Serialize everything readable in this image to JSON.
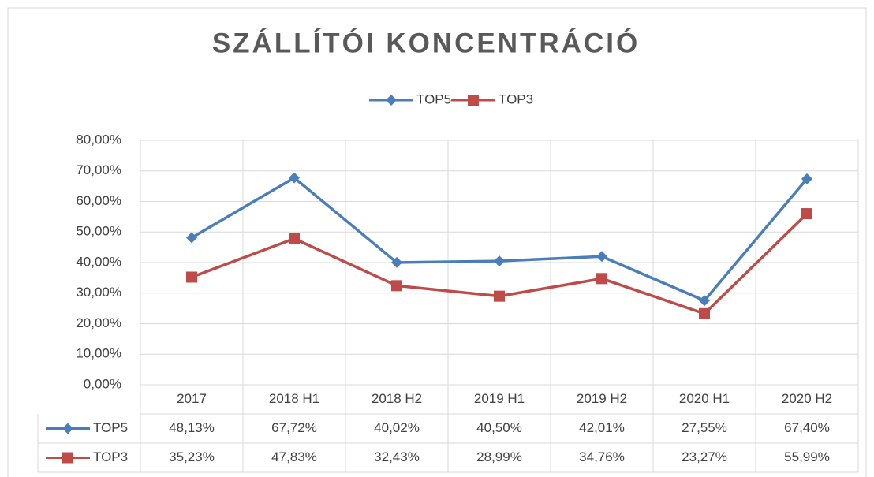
{
  "chart_data": {
    "type": "line",
    "title": "SZÁLLÍTÓI KONCENTRÁCIÓ",
    "categories": [
      "2017",
      "2018 H1",
      "2018 H2",
      "2019 H1",
      "2019 H2",
      "2020 H1",
      "2020 H2"
    ],
    "series": [
      {
        "name": "TOP5",
        "color": "#4a7ebb",
        "marker": "diamond",
        "values": [
          48.13,
          67.72,
          40.02,
          40.5,
          42.01,
          27.55,
          67.4
        ],
        "value_labels": [
          "48,13%",
          "67,72%",
          "40,02%",
          "40,50%",
          "42,01%",
          "27,55%",
          "67,40%"
        ]
      },
      {
        "name": "TOP3",
        "color": "#be4b48",
        "marker": "square",
        "values": [
          35.23,
          47.83,
          32.43,
          28.99,
          34.76,
          23.27,
          55.99
        ],
        "value_labels": [
          "35,23%",
          "47,83%",
          "32,43%",
          "28,99%",
          "34,76%",
          "23,27%",
          "55,99%"
        ]
      }
    ],
    "ylim": [
      0,
      80
    ],
    "yticks": [
      {
        "value": 0,
        "label": "0,00%"
      },
      {
        "value": 10,
        "label": "10,00%"
      },
      {
        "value": 20,
        "label": "20,00%"
      },
      {
        "value": 30,
        "label": "30,00%"
      },
      {
        "value": 40,
        "label": "40,00%"
      },
      {
        "value": 50,
        "label": "50,00%"
      },
      {
        "value": 60,
        "label": "60,00%"
      },
      {
        "value": 70,
        "label": "70,00%"
      },
      {
        "value": 80,
        "label": "80,00%"
      }
    ],
    "grid": true,
    "legend": "top",
    "data_table": true
  }
}
